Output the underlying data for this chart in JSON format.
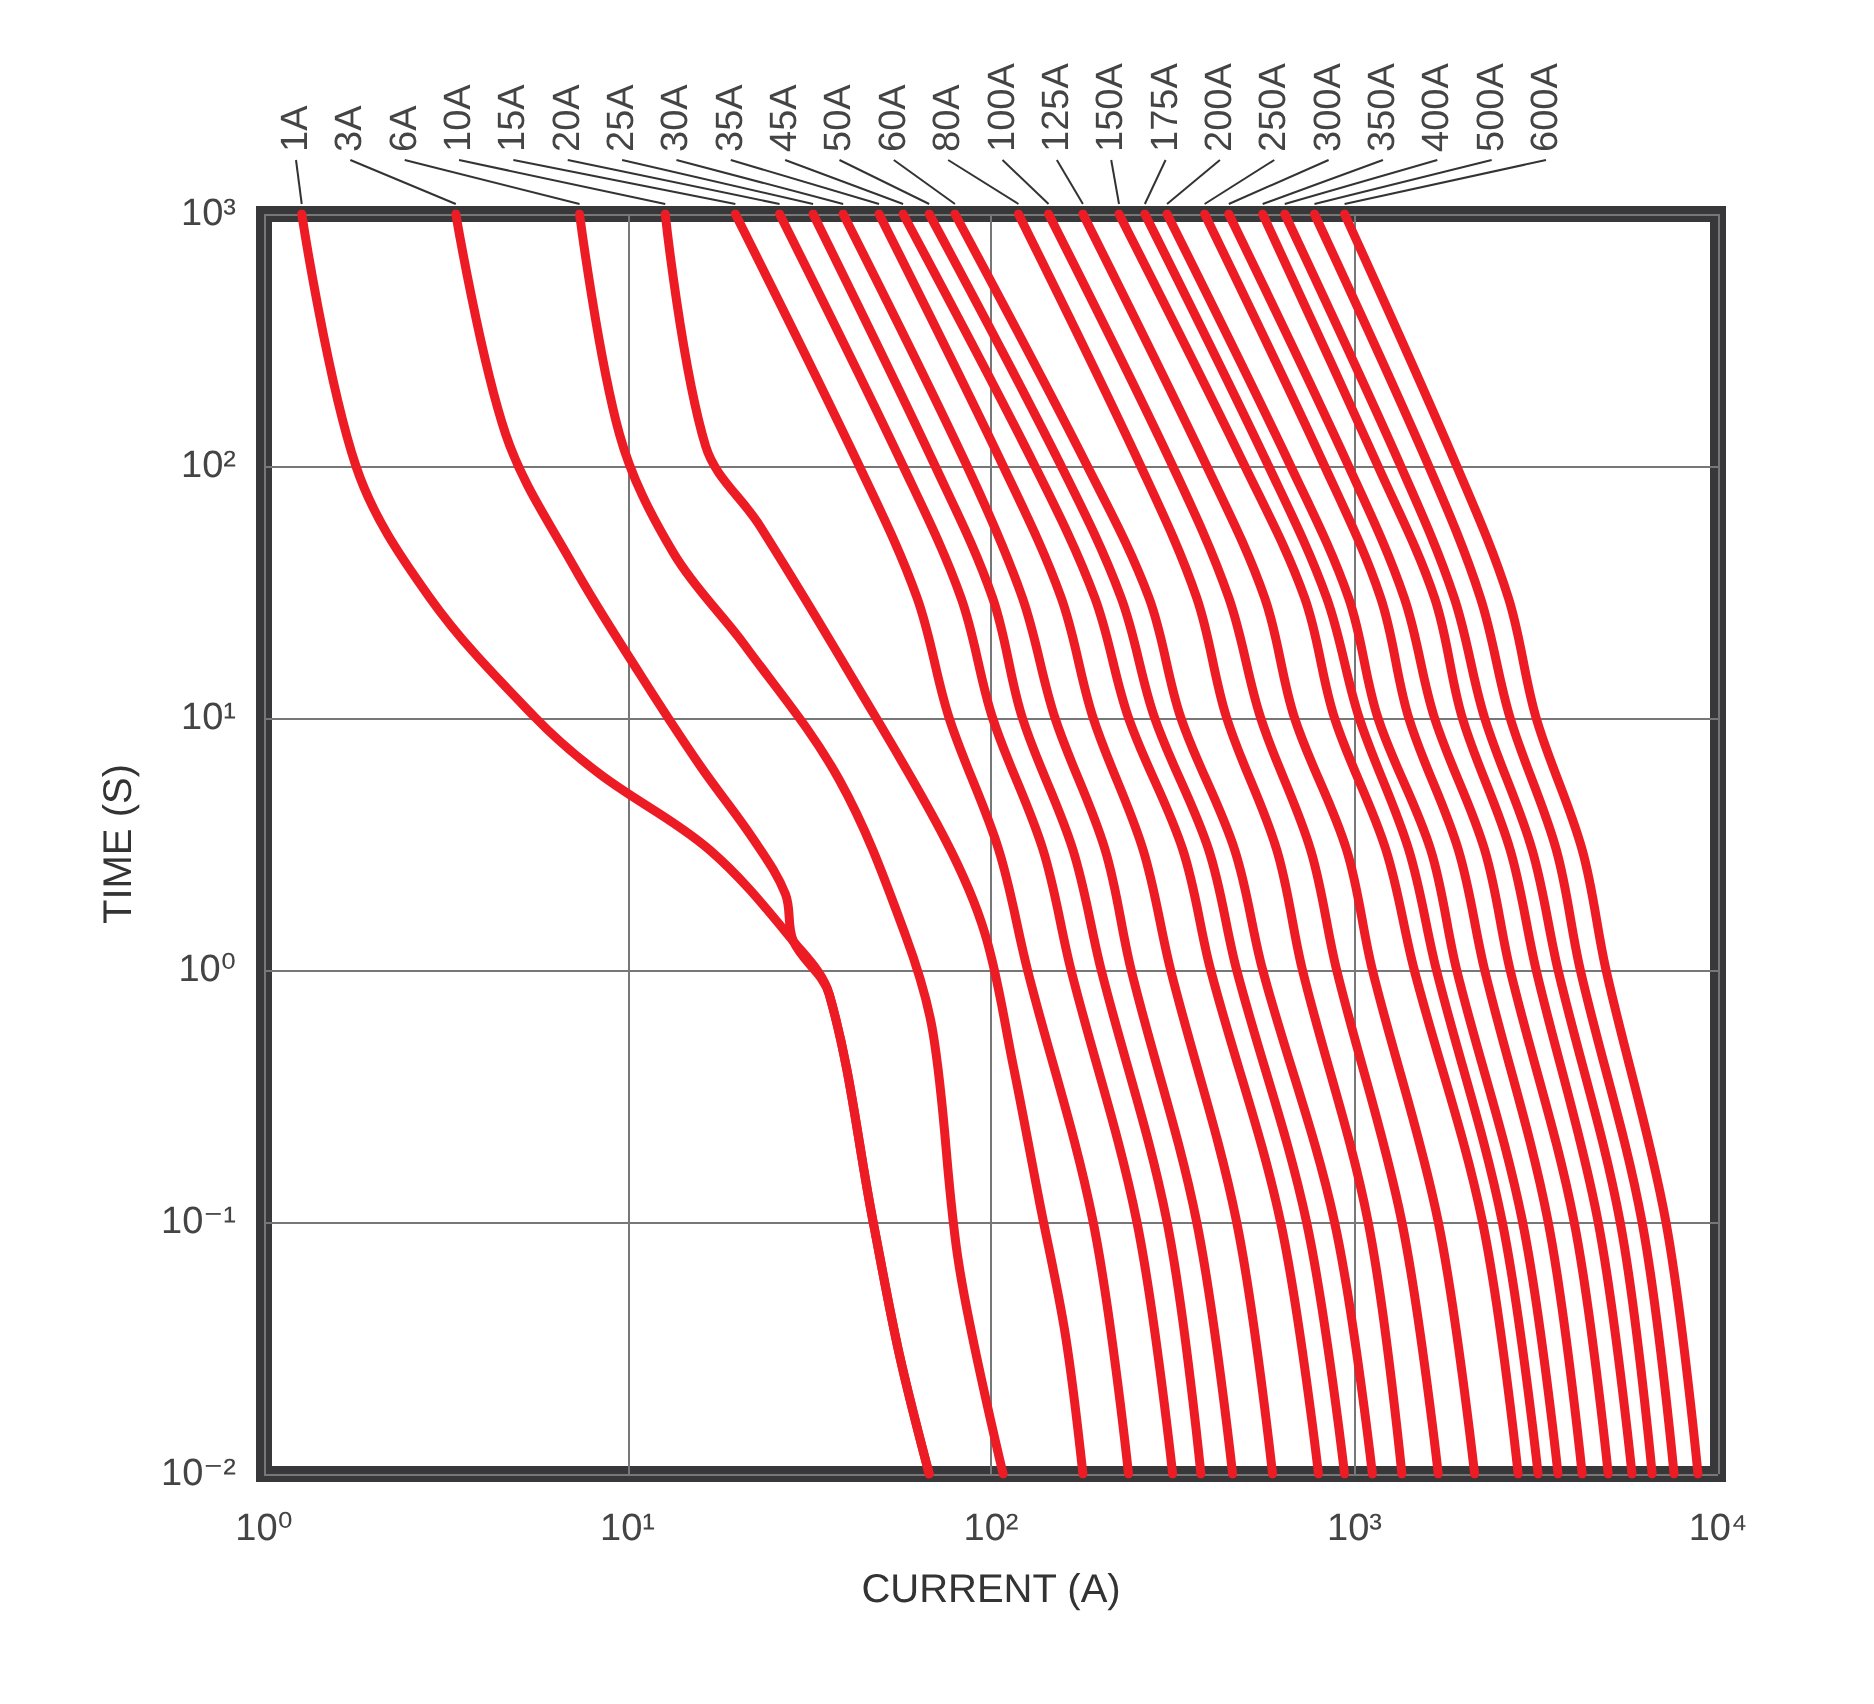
{
  "chart_data": {
    "type": "line",
    "xlabel": "CURRENT (A)",
    "ylabel": "TIME (S)",
    "log": "xy",
    "xlim": [
      1,
      10000
    ],
    "ylim": [
      0.01,
      1000
    ],
    "xticks": [
      {
        "value": 1,
        "label": "10⁰"
      },
      {
        "value": 10,
        "label": "10¹"
      },
      {
        "value": 100,
        "label": "10²"
      },
      {
        "value": 1000,
        "label": "10³"
      },
      {
        "value": 10000,
        "label": "10⁴"
      }
    ],
    "yticks": [
      {
        "value": 0.01,
        "label": "10⁻²"
      },
      {
        "value": 0.1,
        "label": "10⁻¹"
      },
      {
        "value": 1,
        "label": "10⁰"
      },
      {
        "value": 10,
        "label": "10¹"
      },
      {
        "value": 100,
        "label": "10²"
      },
      {
        "value": 1000,
        "label": "10³"
      }
    ],
    "grid": true,
    "marker": "none",
    "line_style": "solid",
    "series": [
      {
        "name": "1A",
        "color": "#ed1c24",
        "x": [
          1.27,
          1.79,
          2.86,
          5.59,
          8.38,
          16.8,
          28.6,
          35.9,
          47.4,
          55.9,
          67.6
        ],
        "values": [
          1000,
          100,
          30,
          10,
          6,
          3,
          1.3,
          0.8,
          0.1,
          0.03,
          0.01
        ]
      },
      {
        "name": "3A",
        "color": "#ed1c24",
        "x": [
          3.37,
          4.62,
          7.11,
          10.8,
          15.8,
          22.2,
          27.2,
          28.6,
          35.9,
          47.4,
          55.9,
          67.6
        ],
        "values": [
          1000,
          134,
          40,
          15,
          6.5,
          3.3,
          2,
          1.3,
          0.8,
          0.1,
          0.03,
          0.01
        ]
      },
      {
        "name": "6A",
        "color": "#ed1c24",
        "x": [
          7.38,
          9.5,
          13.4,
          21.1,
          38.2,
          58,
          69.3,
          81.7,
          108
        ],
        "values": [
          1000,
          134,
          45,
          19.3,
          5.7,
          1.39,
          0.56,
          0.067,
          0.01
        ]
      },
      {
        "name": "10A",
        "color": "#ed1c24",
        "x": [
          12.7,
          16.4,
          23.1,
          41.8,
          74.8,
          96.3,
          115,
          136,
          160,
          179
        ],
        "values": [
          1000,
          120,
          58,
          14.2,
          3.3,
          1.39,
          0.42,
          0.12,
          0.036,
          0.01
        ]
      },
      {
        "name": "15A",
        "color": "#ed1c24",
        "x": [
          19.8,
          43.4,
          62.6,
          76.7,
          105,
          126,
          191,
          239
        ],
        "values": [
          1000,
          100,
          30,
          10,
          3,
          1,
          0.1,
          0.01
        ]
      },
      {
        "name": "20A",
        "color": "#ed1c24",
        "x": [
          26.2,
          57.3,
          82.7,
          101,
          139,
          166,
          252,
          316
        ],
        "values": [
          1000,
          100,
          30,
          10,
          3,
          1,
          0.1,
          0.01
        ]
      },
      {
        "name": "25A",
        "color": "#ed1c24",
        "x": [
          32.4,
          70.2,
          101,
          122,
          168,
          201,
          305,
          378
        ],
        "values": [
          1000,
          100,
          30,
          10,
          3,
          1,
          0.1,
          0.01
        ]
      },
      {
        "name": "30A",
        "color": "#ed1c24",
        "x": [
          39.2,
          85.9,
          122,
          150,
          206,
          243,
          368,
          462
        ],
        "values": [
          1000,
          100,
          30,
          10,
          3,
          1,
          0.1,
          0.01
        ]
      },
      {
        "name": "35A",
        "color": "#ed1c24",
        "x": [
          49.2,
          108,
          156,
          191,
          262,
          312,
          474,
          595
        ],
        "values": [
          1000,
          100,
          30,
          10,
          3,
          1,
          0.1,
          0.01
        ]
      },
      {
        "name": "45A",
        "color": "#ed1c24",
        "x": [
          57.3,
          132,
          193,
          239,
          337,
          402,
          626,
          796
        ],
        "values": [
          1000,
          100,
          30,
          10,
          3,
          1,
          0.1,
          0.01
        ]
      },
      {
        "name": "50A",
        "color": "#ed1c24",
        "x": [
          67.6,
          156,
          228,
          282,
          397,
          474,
          738,
          939
        ],
        "values": [
          1000,
          100,
          30,
          10,
          3,
          1,
          0.1,
          0.01
        ]
      },
      {
        "name": "60A",
        "color": "#ed1c24",
        "x": [
          79.6,
          184,
          272,
          333,
          468,
          559,
          881,
          1120
        ],
        "values": [
          1000,
          100,
          30,
          10,
          3,
          1,
          0.1,
          0.01
        ]
      },
      {
        "name": "80A",
        "color": "#ed1c24",
        "x": [
          119,
          258,
          368,
          445,
          611,
          719,
          1090,
          1350
        ],
        "values": [
          1000,
          100,
          30,
          10,
          3,
          1,
          0.1,
          0.01
        ]
      },
      {
        "name": "100A",
        "color": "#ed1c24",
        "x": [
          144,
          316,
          451,
          552,
          757,
          893,
          1350,
          1700
        ],
        "values": [
          1000,
          100,
          30,
          10,
          3,
          1,
          0.1,
          0.01
        ]
      },
      {
        "name": "125A",
        "color": "#ed1c24",
        "x": [
          179,
          392,
          566,
          684,
          951,
          1120,
          1700,
          2140
        ],
        "values": [
          1000,
          100,
          30,
          10,
          3,
          1,
          0.1,
          0.01
        ]
      },
      {
        "name": "150A",
        "color": "#ed1c24",
        "x": [
          225,
          499,
          729,
          881,
          1220,
          1460,
          2250,
          2820
        ],
        "values": [
          1000,
          100,
          30,
          10,
          3,
          1,
          0.1,
          0.01
        ]
      },
      {
        "name": "175A",
        "color": "#ed1c24",
        "x": [
          265,
          580,
          838,
          1030,
          1410,
          1680,
          2550,
          3200
        ],
        "values": [
          1000,
          100,
          30,
          10,
          3,
          1,
          0.1,
          0.01
        ]
      },
      {
        "name": "200A",
        "color": "#ed1c24",
        "x": [
          305,
          667,
          963,
          1160,
          1620,
          1910,
          2900,
          3630
        ],
        "values": [
          1000,
          100,
          30,
          10,
          3,
          1,
          0.1,
          0.01
        ]
      },
      {
        "name": "250A",
        "color": "#ed1c24",
        "x": [
          387,
          827,
          1180,
          1410,
          1930,
          2280,
          3410,
          4230
        ],
        "values": [
          1000,
          100,
          30,
          10,
          3,
          1,
          0.1,
          0.01
        ]
      },
      {
        "name": "300A",
        "color": "#ed1c24",
        "x": [
          451,
          963,
          1370,
          1660,
          2280,
          2680,
          4020,
          4990
        ],
        "values": [
          1000,
          100,
          30,
          10,
          3,
          1,
          0.1,
          0.01
        ]
      },
      {
        "name": "350A",
        "color": "#ed1c24",
        "x": [
          559,
          1160,
          1660,
          1980,
          2680,
          3160,
          4680,
          5800
        ],
        "values": [
          1000,
          100,
          30,
          10,
          3,
          1,
          0.1,
          0.01
        ]
      },
      {
        "name": "400A",
        "color": "#ed1c24",
        "x": [
          643,
          1340,
          1880,
          2280,
          3080,
          3630,
          5380,
          6590
        ],
        "values": [
          1000,
          100,
          30,
          10,
          3,
          1,
          0.1,
          0.01
        ]
      },
      {
        "name": "500A",
        "color": "#ed1c24",
        "x": [
          776,
          1600,
          2220,
          2680,
          3590,
          4180,
          6180,
          7570
        ],
        "values": [
          1000,
          100,
          30,
          10,
          3,
          1,
          0.1,
          0.01
        ]
      },
      {
        "name": "600A",
        "color": "#ed1c24",
        "x": [
          939,
          1910,
          2650,
          3160,
          4230,
          4920,
          7190,
          8810
        ],
        "values": [
          1000,
          100,
          30,
          10,
          3,
          1,
          0.1,
          0.01
        ]
      }
    ]
  }
}
